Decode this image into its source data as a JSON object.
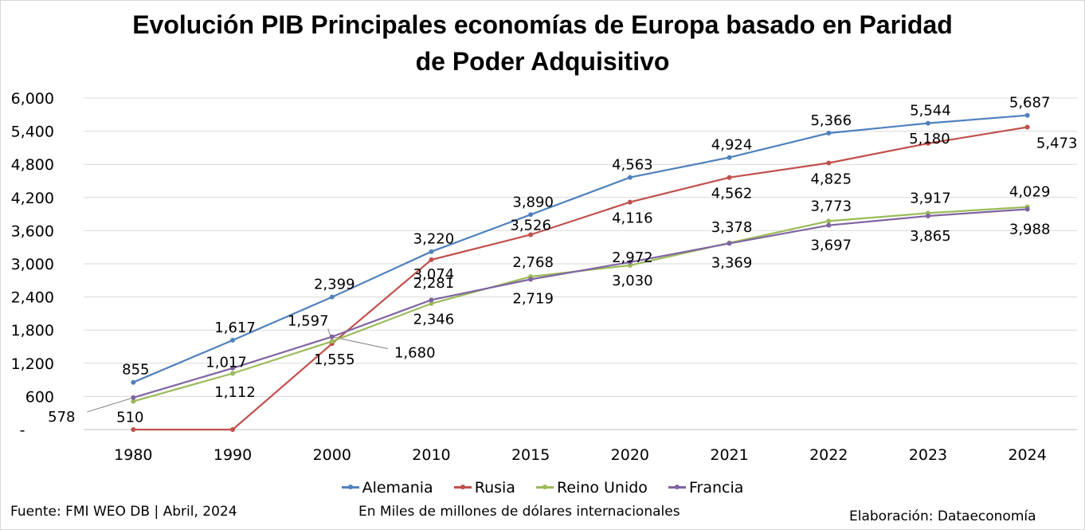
{
  "title_line1": "Evolución PIB Principales economías de Europa basado en Paridad",
  "title_line2": "de Poder Adquisitivo",
  "footer": {
    "source": "Fuente: FMI WEO DB | Abril, 2024",
    "units": "En Miles de millones de dólares internacionales",
    "credit": "Elaboración: Dataeconomía"
  },
  "chart_data": {
    "type": "line",
    "title": "Evolución PIB Principales economías de Europa basado en Paridad de Poder Adquisitivo",
    "categories": [
      "1980",
      "1990",
      "2000",
      "2010",
      "2015",
      "2020",
      "2021",
      "2022",
      "2023",
      "2024"
    ],
    "y_ticks": [
      "-",
      "600",
      "1,200",
      "1,800",
      "2,400",
      "3,000",
      "3,600",
      "4,200",
      "4,800",
      "5,400",
      "6,000"
    ],
    "ylim": [
      0,
      6000
    ],
    "grid": true,
    "legend_position": "bottom",
    "series": [
      {
        "name": "Alemania",
        "color": "#4f81bd",
        "values": [
          855,
          1617,
          2399,
          3220,
          3890,
          4563,
          4924,
          5366,
          5544,
          5687
        ],
        "labels": [
          "855",
          "1,617",
          "2,399",
          "3,220",
          "3,890",
          "4,563",
          "4,924",
          "5,366",
          "5,544",
          "5,687"
        ]
      },
      {
        "name": "Rusia",
        "color": "#c0504d",
        "values": [
          0,
          0,
          1555,
          3074,
          3526,
          4116,
          4562,
          4825,
          5180,
          5473
        ],
        "labels": [
          "",
          "",
          "1,555",
          "3,074",
          "3,526",
          "4,116",
          "4,562",
          "4,825",
          "5,180",
          "5,473"
        ]
      },
      {
        "name": "Reino Unido",
        "color": "#9bbb59",
        "values": [
          510,
          1017,
          1597,
          2281,
          2768,
          2972,
          3378,
          3773,
          3917,
          4029
        ],
        "labels": [
          "510",
          "1,017",
          "1,597",
          "2,281",
          "2,768",
          "2,972",
          "3,378",
          "3,773",
          "3,917",
          "4,029"
        ]
      },
      {
        "name": "Francia",
        "color": "#8064a2",
        "values": [
          578,
          1112,
          1680,
          2346,
          2719,
          3030,
          3369,
          3697,
          3865,
          3988
        ],
        "labels": [
          "578",
          "1,112",
          "1,680",
          "2,346",
          "2,719",
          "3,030",
          "3,369",
          "3,697",
          "3,865",
          "3,988"
        ]
      }
    ]
  }
}
